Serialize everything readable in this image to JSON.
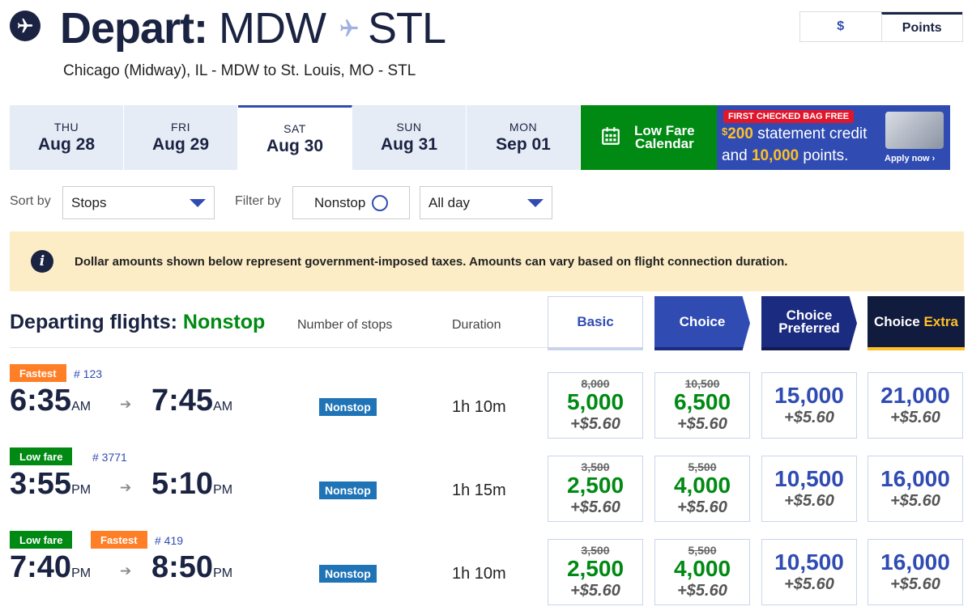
{
  "header": {
    "title_prefix": "Depart:",
    "origin": "MDW",
    "destination": "STL",
    "subtitle": "Chicago (Midway), IL - MDW to St. Louis, MO - STL"
  },
  "currency": {
    "dollar": "$",
    "points": "Points",
    "selected": "Points"
  },
  "dates": [
    {
      "dow": "THU",
      "date": "Aug 28",
      "active": false
    },
    {
      "dow": "FRI",
      "date": "Aug 29",
      "active": false
    },
    {
      "dow": "SAT",
      "date": "Aug 30",
      "active": true
    },
    {
      "dow": "SUN",
      "date": "Aug 31",
      "active": false
    },
    {
      "dow": "MON",
      "date": "Sep 01",
      "active": false
    }
  ],
  "low_fare_calendar": {
    "line1": "Low Fare",
    "line2": "Calendar"
  },
  "promo": {
    "pill": "FIRST CHECKED BAG FREE",
    "dollar_sign": "$",
    "credit_amount": "200",
    "credit_text": " statement credit",
    "and_text": "and ",
    "points_amount": "10,000",
    "points_text": " points.",
    "apply": "Apply now ›"
  },
  "controls": {
    "sort_label": "Sort by",
    "sort_value": "Stops",
    "filter_label": "Filter by",
    "filter_nonstop": "Nonstop",
    "time_value": "All day"
  },
  "notice": "Dollar amounts shown below represent government-imposed taxes. Amounts can vary based on flight connection duration.",
  "list": {
    "title": "Departing flights:",
    "title_filter": "Nonstop",
    "col_stops": "Number of stops",
    "col_duration": "Duration"
  },
  "fare_headers": {
    "basic": "Basic",
    "choice": "Choice",
    "pref1": "Choice",
    "pref2": "Preferred",
    "extra1": "Choice",
    "extra2": "Extra"
  },
  "flights": [
    {
      "badges": [
        "Fastest"
      ],
      "number": "# 123",
      "depart": "6:35",
      "depart_ampm": "AM",
      "arrive": "7:45",
      "arrive_ampm": "AM",
      "stops": "Nonstop",
      "duration": "1h 10m",
      "fares": [
        {
          "old": "8,000",
          "points": "5,000",
          "tax": "+$5.60"
        },
        {
          "old": "10,500",
          "points": "6,500",
          "tax": "+$5.60"
        },
        {
          "old": "",
          "points": "15,000",
          "tax": "+$5.60"
        },
        {
          "old": "",
          "points": "21,000",
          "tax": "+$5.60"
        }
      ]
    },
    {
      "badges": [
        "Low fare"
      ],
      "number": "# 3771",
      "depart": "3:55",
      "depart_ampm": "PM",
      "arrive": "5:10",
      "arrive_ampm": "PM",
      "stops": "Nonstop",
      "duration": "1h 15m",
      "fares": [
        {
          "old": "3,500",
          "points": "2,500",
          "tax": "+$5.60"
        },
        {
          "old": "5,500",
          "points": "4,000",
          "tax": "+$5.60"
        },
        {
          "old": "",
          "points": "10,500",
          "tax": "+$5.60"
        },
        {
          "old": "",
          "points": "16,000",
          "tax": "+$5.60"
        }
      ]
    },
    {
      "badges": [
        "Low fare",
        "Fastest"
      ],
      "number": "# 419",
      "depart": "7:40",
      "depart_ampm": "PM",
      "arrive": "8:50",
      "arrive_ampm": "PM",
      "stops": "Nonstop",
      "duration": "1h 10m",
      "fares": [
        {
          "old": "3,500",
          "points": "2,500",
          "tax": "+$5.60"
        },
        {
          "old": "5,500",
          "points": "4,000",
          "tax": "+$5.60"
        },
        {
          "old": "",
          "points": "10,500",
          "tax": "+$5.60"
        },
        {
          "old": "",
          "points": "16,000",
          "tax": "+$5.60"
        }
      ]
    }
  ],
  "colors": {
    "navy": "#1a2341",
    "blue": "#304cb2",
    "green": "#008a13",
    "orange": "#ff7f27",
    "yellow": "#ffbf27",
    "notice_bg": "#fdedc6"
  }
}
